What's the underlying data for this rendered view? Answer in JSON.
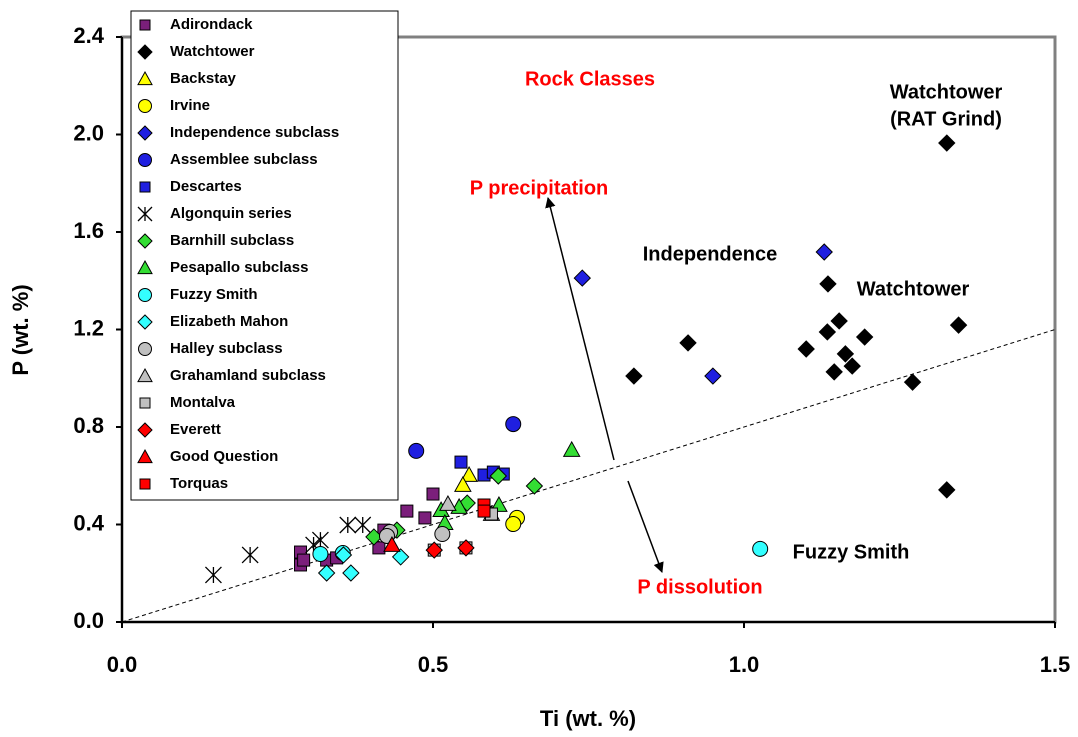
{
  "chart_data": {
    "type": "scatter",
    "xlabel": "Ti (wt. %)",
    "ylabel": "P (wt. %)",
    "xlim": [
      0,
      1.5
    ],
    "ylim": [
      0,
      2.4
    ],
    "xticks": [
      {
        "value": 0,
        "label": "0.0"
      },
      0.5,
      {
        "value": 1,
        "label": "1.0"
      },
      1.5
    ],
    "yticks": [
      {
        "value": 0,
        "label": "0.0"
      },
      0.4,
      0.8,
      1.2,
      1.6,
      {
        "value": 2,
        "label": "2.0"
      },
      2.4
    ],
    "legend": "upper left",
    "annotations": [
      "Rock Classes",
      "P precipitation",
      "P dissolution",
      "Watchtower",
      "(RAT Grind)",
      "Independence",
      "Watchtower",
      "Fuzzy Smith"
    ],
    "reference_line": {
      "x": [
        0,
        1.5
      ],
      "y": [
        0,
        1.2
      ],
      "style": "dashed",
      "color": "#000000"
    },
    "series": [
      {
        "name": "Adirondack",
        "marker": "square",
        "color": "#7b1f7b",
        "x": [
          0.287,
          0.287,
          0.292,
          0.329,
          0.345,
          0.421,
          0.5,
          0.458,
          0.487,
          0.413
        ],
        "y": [
          0.287,
          0.234,
          0.254,
          0.254,
          0.263,
          0.377,
          0.525,
          0.455,
          0.427,
          0.304
        ]
      },
      {
        "name": "Watchtower",
        "marker": "diamond",
        "color": "#000000",
        "x": [
          1.326,
          1.345,
          1.326,
          1.271,
          1.135,
          1.153,
          1.134,
          1.1,
          1.163,
          1.145,
          1.174,
          1.194,
          0.91,
          0.823
        ],
        "y": [
          1.965,
          1.218,
          0.542,
          0.984,
          1.387,
          1.235,
          1.19,
          1.12,
          1.1,
          1.026,
          1.05,
          1.169,
          1.145,
          1.009
        ]
      },
      {
        "name": "Backstay",
        "marker": "triangle",
        "color": "#ffff00",
        "x": [
          0.558,
          0.548
        ],
        "y": [
          0.603,
          0.562
        ]
      },
      {
        "name": "Irvine",
        "marker": "circle",
        "color": "#ffff00",
        "x": [
          0.635,
          0.629
        ],
        "y": [
          0.427,
          0.402
        ]
      },
      {
        "name": "Independence subclass",
        "marker": "diamond",
        "color": "#1f1fe0",
        "x": [
          1.129,
          0.74,
          0.95
        ],
        "y": [
          1.518,
          1.411,
          1.009
        ]
      },
      {
        "name": "Assemblee subclass",
        "marker": "circle",
        "color": "#1f1fe0",
        "x": [
          0.473,
          0.629
        ],
        "y": [
          0.702,
          0.812
        ]
      },
      {
        "name": "Descartes",
        "marker": "square",
        "color": "#1f1fe0",
        "x": [
          0.545,
          0.582,
          0.597,
          0.613
        ],
        "y": [
          0.656,
          0.603,
          0.615,
          0.607
        ]
      },
      {
        "name": "Algonquin series",
        "marker": "asterisk",
        "color": "#000000",
        "x": [
          0.147,
          0.206,
          0.308,
          0.319,
          0.363,
          0.387
        ],
        "y": [
          0.193,
          0.275,
          0.316,
          0.336,
          0.398,
          0.398
        ]
      },
      {
        "name": "Barnhill subclass",
        "marker": "diamond",
        "color": "#33dd33",
        "x": [
          0.605,
          0.663,
          0.555,
          0.405,
          0.442
        ],
        "y": [
          0.599,
          0.558,
          0.488,
          0.349,
          0.377
        ]
      },
      {
        "name": "Pesapallo subclass",
        "marker": "triangle",
        "color": "#33dd33",
        "x": [
          0.723,
          0.513,
          0.542,
          0.519,
          0.606
        ],
        "y": [
          0.706,
          0.459,
          0.472,
          0.406,
          0.48
        ]
      },
      {
        "name": "Fuzzy Smith",
        "marker": "circle",
        "color": "#33ffff",
        "x": [
          1.026,
          0.319,
          0.355
        ],
        "y": [
          0.3,
          0.279,
          0.283
        ]
      },
      {
        "name": "Elizabeth Mahon",
        "marker": "diamond",
        "color": "#33ffff",
        "x": [
          0.329,
          0.368,
          0.448,
          0.356
        ],
        "y": [
          0.201,
          0.201,
          0.267,
          0.275
        ]
      },
      {
        "name": "Halley subclass",
        "marker": "circle",
        "color": "#c0c0c0",
        "x": [
          0.431,
          0.515,
          0.426
        ],
        "y": [
          0.369,
          0.361,
          0.353
        ]
      },
      {
        "name": "Grahamland subclass",
        "marker": "triangle",
        "color": "#c0c0c0",
        "x": [
          0.524,
          0.594
        ],
        "y": [
          0.484,
          0.443
        ]
      },
      {
        "name": "Montalva",
        "marker": "square",
        "color": "#c0c0c0",
        "x": [
          0.502,
          0.553,
          0.594
        ],
        "y": [
          0.295,
          0.304,
          0.443
        ]
      },
      {
        "name": "Everett",
        "marker": "diamond",
        "color": "#ff0000",
        "x": [
          0.502,
          0.553
        ],
        "y": [
          0.295,
          0.304
        ]
      },
      {
        "name": "Good Question",
        "marker": "triangle",
        "color": "#ff0000",
        "x": [
          0.434
        ],
        "y": [
          0.316
        ]
      },
      {
        "name": "Torquas",
        "marker": "square",
        "color": "#ff0000",
        "x": [
          0.582,
          0.582
        ],
        "y": [
          0.48,
          0.455
        ]
      }
    ]
  }
}
